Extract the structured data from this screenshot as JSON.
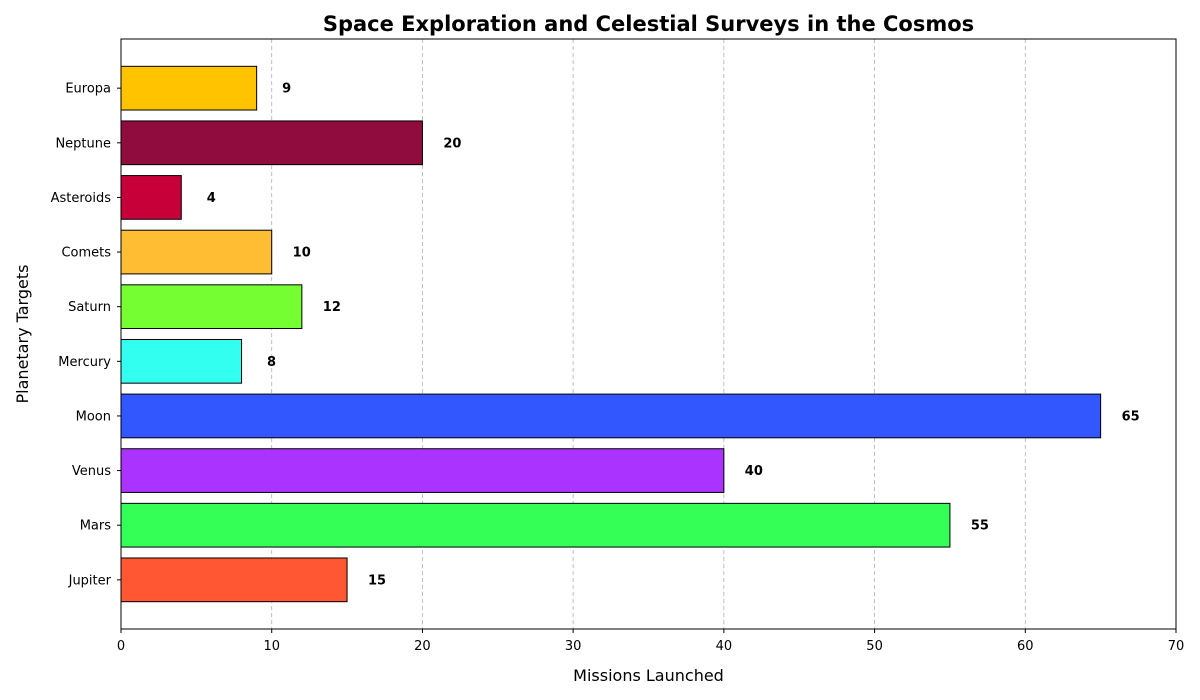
{
  "chart_data": {
    "type": "bar",
    "orientation": "horizontal",
    "title": "Space Exploration and Celestial Surveys in the Cosmos",
    "xlabel": "Missions Launched",
    "ylabel": "Planetary Targets",
    "xlim": [
      0,
      70
    ],
    "xticks": [
      0,
      10,
      20,
      30,
      40,
      50,
      60,
      70
    ],
    "grid": "x-dashed",
    "categories": [
      "Jupiter",
      "Mars",
      "Venus",
      "Moon",
      "Mercury",
      "Saturn",
      "Comets",
      "Asteroids",
      "Neptune",
      "Europa"
    ],
    "values": [
      15,
      55,
      40,
      65,
      8,
      12,
      10,
      4,
      20,
      9
    ],
    "colors": [
      "#ff5733",
      "#33ff57",
      "#aa33ff",
      "#3357ff",
      "#33fff0",
      "#75ff33",
      "#ffbd33",
      "#c70039",
      "#900c3f",
      "#ffc300"
    ]
  }
}
